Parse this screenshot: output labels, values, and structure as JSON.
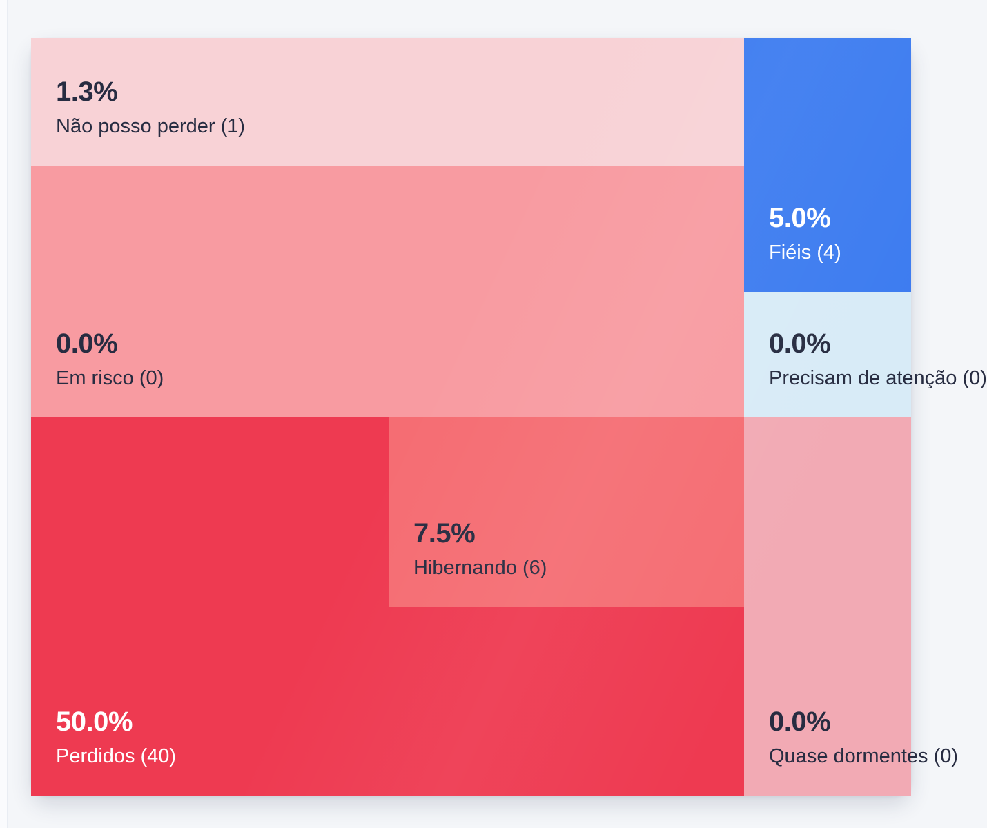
{
  "page": {
    "background_color": "#f4f6f9"
  },
  "chart_data": {
    "type": "treemap",
    "legend_position": "none",
    "label_anchor": "bottom-left",
    "label_format": "percent above 'name (count)'",
    "segments": [
      {
        "id": "nao-posso-perder",
        "name": "Não posso perder",
        "count": 1,
        "percent": 1.3,
        "percent_label": "1.3%",
        "display_label": "Não posso perder (1)",
        "color": "#f8d2d6",
        "text_color": "#272c41"
      },
      {
        "id": "fieis",
        "name": "Fiéis",
        "count": 4,
        "percent": 5.0,
        "percent_label": "5.0%",
        "display_label": "Fiéis (4)",
        "color": "#3d7cf0",
        "text_color": "#ffffff"
      },
      {
        "id": "em-risco",
        "name": "Em risco",
        "count": 0,
        "percent": 0.0,
        "percent_label": "0.0%",
        "display_label": "Em risco (0)",
        "color": "#f89ba1",
        "text_color": "#272c41"
      },
      {
        "id": "precisam-de-atencao",
        "name": "Precisam de atenção",
        "count": 0,
        "percent": 0.0,
        "percent_label": "0.0%",
        "display_label": "Precisam de atenção (0)",
        "color": "#d8ebf7",
        "text_color": "#272c41"
      },
      {
        "id": "perdidos",
        "name": "Perdidos",
        "count": 40,
        "percent": 50.0,
        "percent_label": "50.0%",
        "display_label": "Perdidos (40)",
        "color": "#ee3a51",
        "text_color": "#ffffff"
      },
      {
        "id": "hibernando",
        "name": "Hibernando",
        "count": 6,
        "percent": 7.5,
        "percent_label": "7.5%",
        "display_label": "Hibernando (6)",
        "color": "#f56d73",
        "text_color": "#272c41"
      },
      {
        "id": "quase-dormentes",
        "name": "Quase dormentes",
        "count": 0,
        "percent": 0.0,
        "percent_label": "0.0%",
        "display_label": "Quase dormentes (0)",
        "color": "#f2aab4",
        "text_color": "#272c41"
      }
    ]
  }
}
